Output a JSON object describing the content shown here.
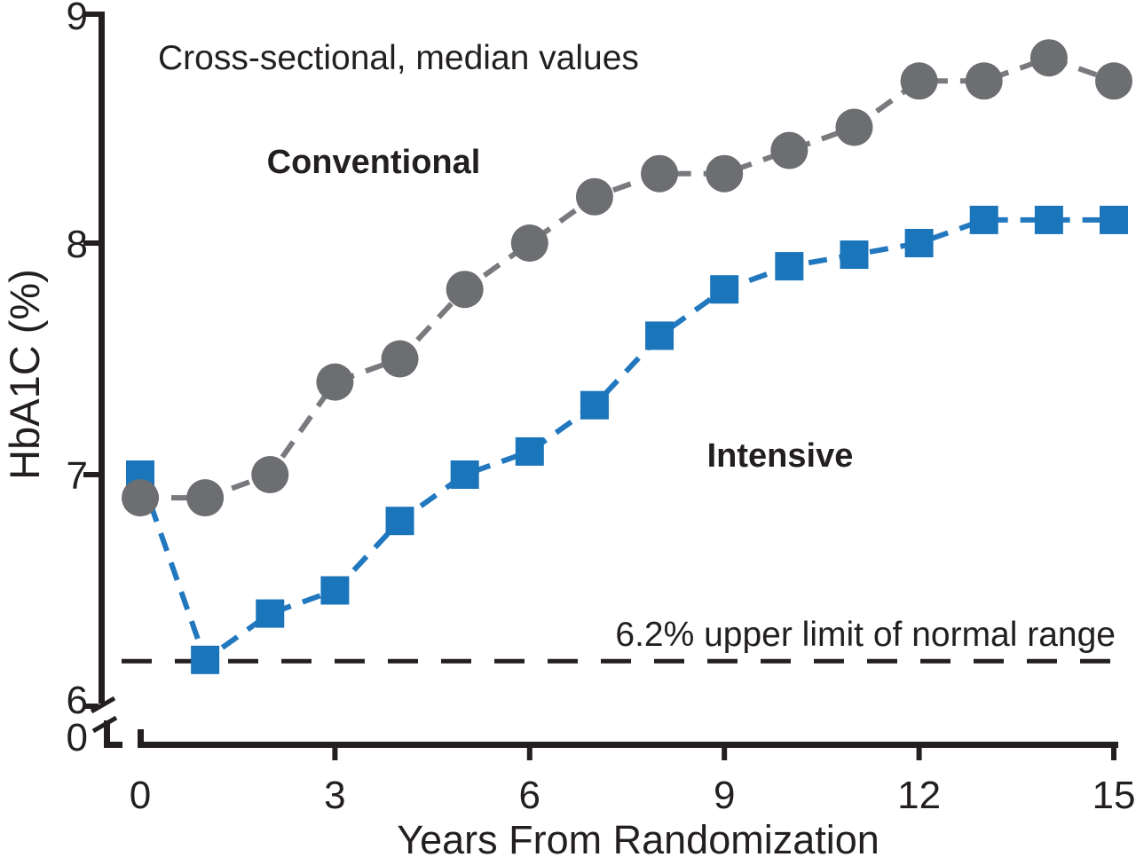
{
  "figure": {
    "background": "#ffffff",
    "text_color": "#231f20"
  },
  "chart_data": {
    "type": "line",
    "subtitle": "Cross-sectional, median values",
    "xlabel": "Years From Randomization",
    "ylabel": "HbA1C (%)",
    "x": [
      0,
      1,
      2,
      3,
      4,
      5,
      6,
      7,
      8,
      9,
      10,
      11,
      12,
      13,
      14,
      15
    ],
    "x_ticks": [
      0,
      3,
      6,
      9,
      12,
      15
    ],
    "y_ticks": [
      9,
      8,
      7,
      6,
      0
    ],
    "y_axis_break": true,
    "ylim_main": [
      6,
      9
    ],
    "grid": false,
    "legend_position": "inline-text-labels",
    "series": [
      {
        "name": "Intensive",
        "marker": "square",
        "line_style": "dashed",
        "marker_color": "#1b75bb",
        "line_color": "#2278bf",
        "values": [
          7.0,
          6.2,
          6.4,
          6.5,
          6.8,
          7.0,
          7.1,
          7.3,
          7.6,
          7.8,
          7.9,
          7.95,
          8.0,
          8.1,
          8.1,
          8.1
        ]
      },
      {
        "name": "Conventional",
        "marker": "circle",
        "line_style": "dashed",
        "marker_color": "#6d6e71",
        "line_color": "#797a7d",
        "values": [
          6.9,
          6.9,
          7.0,
          7.4,
          7.5,
          7.8,
          8.0,
          8.2,
          8.3,
          8.3,
          8.4,
          8.5,
          8.7,
          8.7,
          8.8,
          8.7
        ]
      }
    ],
    "reference_line": {
      "value": 6.2,
      "label": "6.2% upper limit of normal range",
      "style": "dashed",
      "color": "#231f20"
    }
  }
}
